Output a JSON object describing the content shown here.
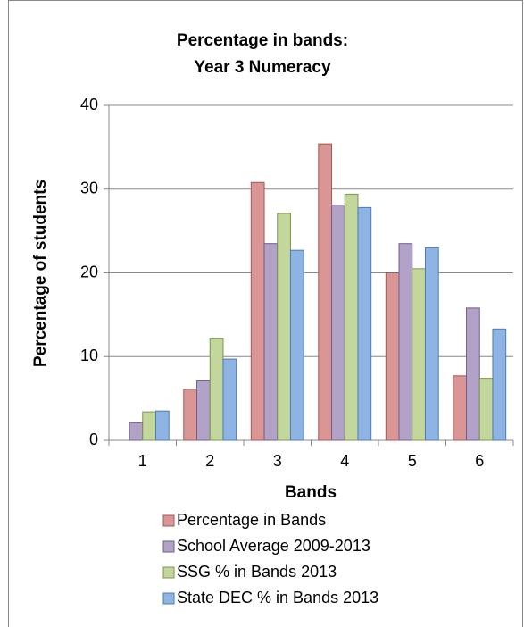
{
  "chart_data": {
    "type": "bar",
    "title": [
      "Percentage in bands:",
      "Year 3 Numeracy"
    ],
    "x_label": "Bands",
    "y_label": "Percentage of students",
    "categories": [
      "1",
      "2",
      "3",
      "4",
      "5",
      "6"
    ],
    "series": [
      {
        "name": "Percentage in Bands",
        "color": "#d99694",
        "border": "#a05a58",
        "values": [
          0,
          6.1,
          30.8,
          35.4,
          20.0,
          7.7
        ]
      },
      {
        "name": "School Average 2009-2013",
        "color": "#b3a2c7",
        "border": "#6f5f8a",
        "values": [
          2.1,
          7.1,
          23.5,
          28.1,
          23.5,
          15.8
        ]
      },
      {
        "name": "SSG % in Bands 2013",
        "color": "#c3d69b",
        "border": "#7d9450",
        "values": [
          3.4,
          12.2,
          27.1,
          29.4,
          20.5,
          7.4
        ]
      },
      {
        "name": "State DEC % in Bands 2013",
        "color": "#8eb4e3",
        "border": "#4f7cb5",
        "values": [
          3.5,
          9.7,
          22.7,
          27.8,
          23.0,
          13.3
        ]
      }
    ],
    "ylim": [
      0,
      40
    ],
    "yticks": [
      0,
      10,
      20,
      30,
      40
    ],
    "grid": true,
    "legend": "bottom"
  }
}
